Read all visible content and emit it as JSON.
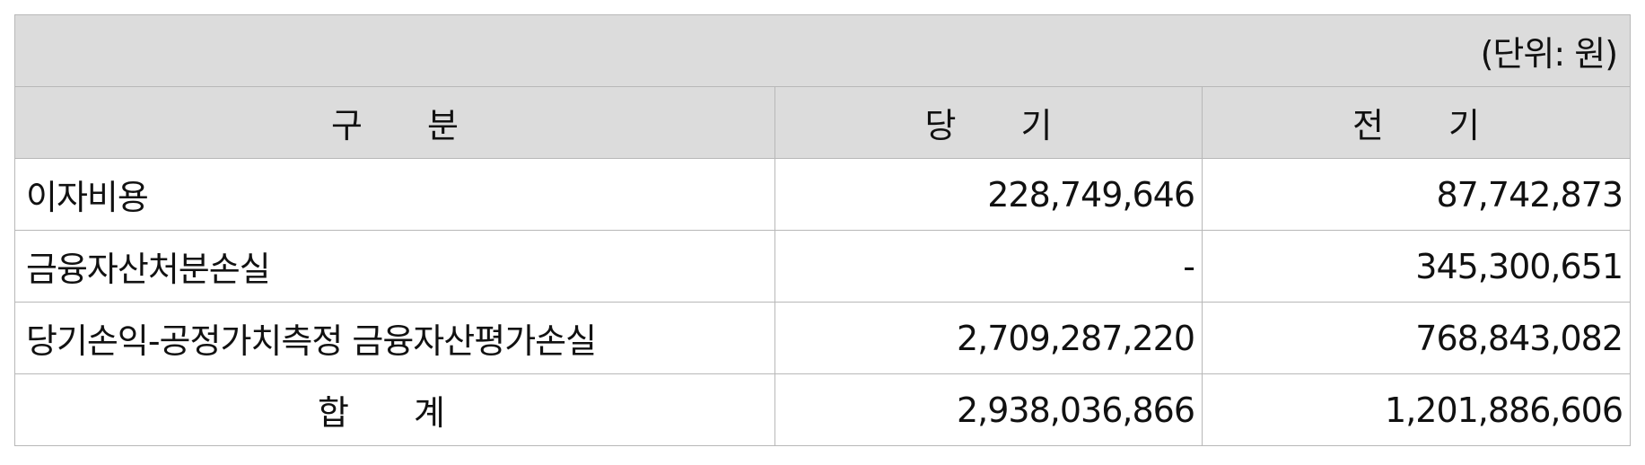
{
  "unit_label": "(단위: 원)",
  "columns": {
    "category": "구 분",
    "current": "당 기",
    "previous": "전 기"
  },
  "rows": [
    {
      "label": "이자비용",
      "current": "228,749,646",
      "previous": "87,742,873"
    },
    {
      "label": "금융자산처분손실",
      "current": "-",
      "previous": "345,300,651"
    },
    {
      "label": "당기손익-공정가치측정 금융자산평가손실",
      "current": "2,709,287,220",
      "previous": "768,843,082"
    }
  ],
  "total": {
    "label": "합 계",
    "current": "2,938,036,866",
    "previous": "1,201,886,606"
  }
}
